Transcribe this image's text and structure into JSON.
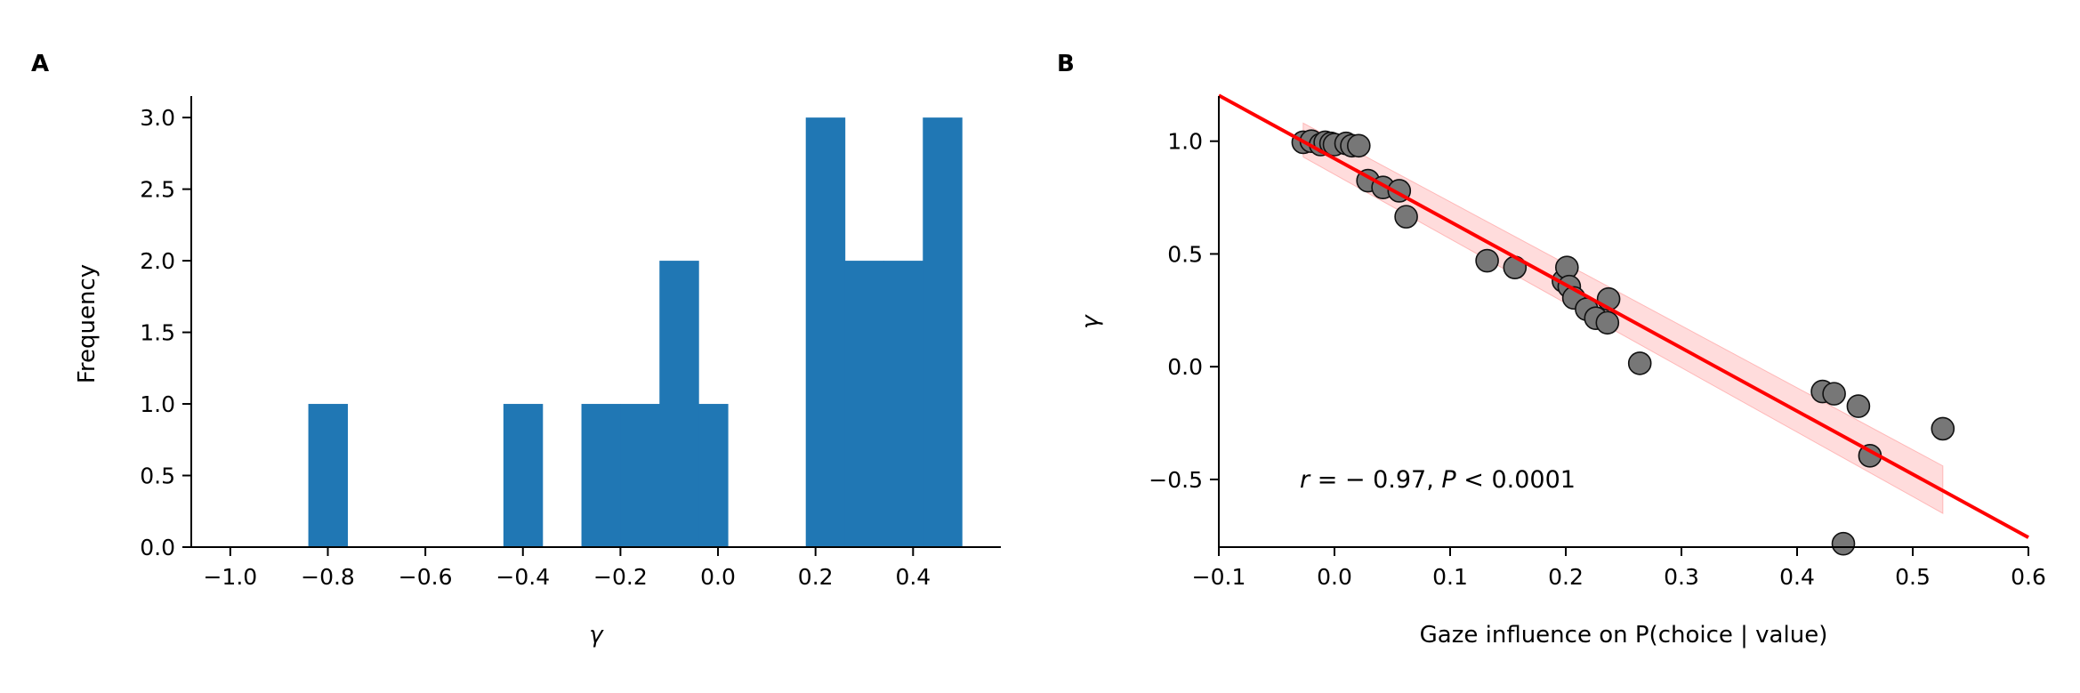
{
  "chart_data": [
    {
      "panel_label": "A",
      "type": "bar",
      "subtype": "histogram",
      "bars": [
        {
          "x0": -0.84,
          "x1": -0.76,
          "value": 1
        },
        {
          "x0": -0.44,
          "x1": -0.36,
          "value": 1
        },
        {
          "x0": -0.28,
          "x1": -0.2,
          "value": 1
        },
        {
          "x0": -0.2,
          "x1": -0.12,
          "value": 1
        },
        {
          "x0": -0.12,
          "x1": -0.04,
          "value": 2
        },
        {
          "x0": -0.04,
          "x1": 0.02,
          "value": 1
        },
        {
          "x0": 0.18,
          "x1": 0.26,
          "value": 3
        },
        {
          "x0": 0.26,
          "x1": 0.34,
          "value": 2
        },
        {
          "x0": 0.34,
          "x1": 0.42,
          "value": 2
        },
        {
          "x0": 0.42,
          "x1": 0.5,
          "value": 3
        }
      ],
      "xlabel": "γ",
      "ylabel": "Frequency",
      "xlim": [
        -1.08,
        0.58
      ],
      "ylim": [
        0,
        3.15
      ],
      "xticks": [
        -1.0,
        -0.8,
        -0.6,
        -0.4,
        -0.2,
        0.0,
        0.2,
        0.4
      ],
      "xtick_labels": [
        "−1.0",
        "−0.8",
        "−0.6",
        "−0.4",
        "−0.2",
        "0.0",
        "0.2",
        "0.4"
      ],
      "yticks": [
        0.0,
        0.5,
        1.0,
        1.5,
        2.0,
        2.5,
        3.0
      ],
      "ytick_labels": [
        "0.0",
        "0.5",
        "1.0",
        "1.5",
        "2.0",
        "2.5",
        "3.0"
      ],
      "bar_color": "#2077b4",
      "grid": false
    },
    {
      "panel_label": "B",
      "type": "scatter",
      "points": [
        {
          "x": -0.027,
          "y": 0.995
        },
        {
          "x": -0.02,
          "y": 1.0
        },
        {
          "x": -0.012,
          "y": 0.985
        },
        {
          "x": -0.008,
          "y": 0.995
        },
        {
          "x": -0.003,
          "y": 0.99
        },
        {
          "x": 0.0,
          "y": 0.985
        },
        {
          "x": 0.01,
          "y": 0.99
        },
        {
          "x": 0.015,
          "y": 0.98
        },
        {
          "x": 0.021,
          "y": 0.98
        },
        {
          "x": 0.029,
          "y": 0.825
        },
        {
          "x": 0.042,
          "y": 0.795
        },
        {
          "x": 0.056,
          "y": 0.78
        },
        {
          "x": 0.062,
          "y": 0.665
        },
        {
          "x": 0.132,
          "y": 0.47
        },
        {
          "x": 0.156,
          "y": 0.44
        },
        {
          "x": 0.198,
          "y": 0.38
        },
        {
          "x": 0.201,
          "y": 0.44
        },
        {
          "x": 0.203,
          "y": 0.355
        },
        {
          "x": 0.207,
          "y": 0.305
        },
        {
          "x": 0.218,
          "y": 0.255
        },
        {
          "x": 0.226,
          "y": 0.215
        },
        {
          "x": 0.236,
          "y": 0.195
        },
        {
          "x": 0.237,
          "y": 0.3
        },
        {
          "x": 0.264,
          "y": 0.015
        },
        {
          "x": 0.422,
          "y": -0.11
        },
        {
          "x": 0.432,
          "y": -0.12
        },
        {
          "x": 0.44,
          "y": -0.785
        },
        {
          "x": 0.453,
          "y": -0.175
        },
        {
          "x": 0.463,
          "y": -0.395
        },
        {
          "x": 0.526,
          "y": -0.275
        }
      ],
      "fit_line": {
        "x": [
          -0.1,
          0.6
        ],
        "y": [
          1.203,
          -0.757
        ],
        "color": "#ff0000"
      },
      "ci_band": {
        "x": [
          -0.027,
          0.526
        ],
        "lower": [
          0.93,
          -0.65
        ],
        "upper": [
          1.08,
          -0.44
        ],
        "color": "#ffd0d0"
      },
      "point_color": "#777777",
      "annotation": {
        "r_symbol": "r",
        "rest": " = − 0.97, ",
        "p_symbol": "P",
        "tail": " < 0.0001",
        "x": -0.03,
        "y": -0.535
      },
      "xlabel": "Gaze influence on P(choice | value)",
      "ylabel": "γ",
      "xlim": [
        -0.1,
        0.6
      ],
      "ylim": [
        -0.8,
        1.2
      ],
      "xticks": [
        -0.1,
        0.0,
        0.1,
        0.2,
        0.3,
        0.4,
        0.5,
        0.6
      ],
      "xtick_labels": [
        "−0.1",
        "0.0",
        "0.1",
        "0.2",
        "0.3",
        "0.4",
        "0.5",
        "0.6"
      ],
      "yticks": [
        -0.5,
        0.0,
        0.5,
        1.0
      ],
      "ytick_labels": [
        "−0.5",
        "0.0",
        "0.5",
        "1.0"
      ],
      "grid": false
    }
  ]
}
